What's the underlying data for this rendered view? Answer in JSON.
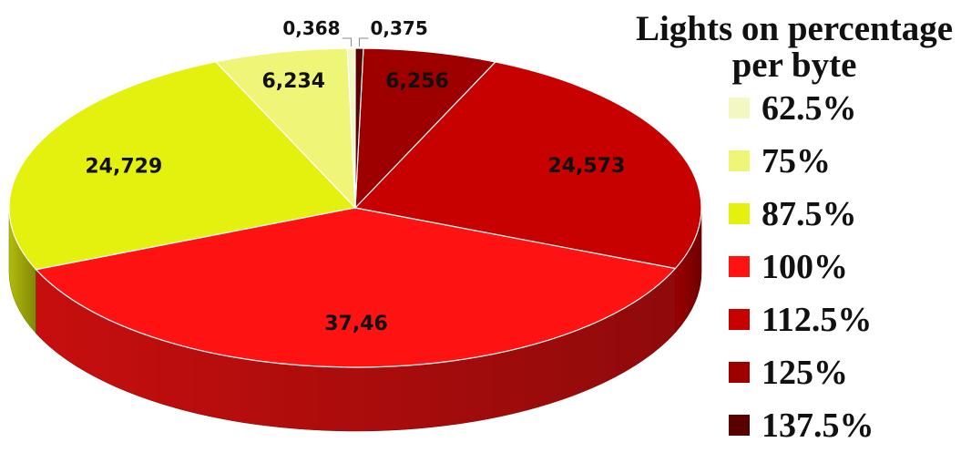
{
  "chart_data": {
    "type": "pie",
    "title": "",
    "legend_title_lines": [
      "Lights on percentage",
      "per byte"
    ],
    "legend_position": "right",
    "categories": [
      "62.5%",
      "75%",
      "87.5%",
      "100%",
      "112.5%",
      "125%",
      "137.5%"
    ],
    "value_labels": [
      "0,368",
      "6,234",
      "24,729",
      "37,46",
      "24,573",
      "6,256",
      "0,375"
    ],
    "values": [
      0.368,
      6.234,
      24.729,
      37.46,
      24.573,
      6.256,
      0.375
    ],
    "colors": [
      "#F2F7C4",
      "#EEF577",
      "#E4F00D",
      "#FF1212",
      "#C70000",
      "#9E0000",
      "#5A0000"
    ],
    "style": "3d-pie"
  }
}
